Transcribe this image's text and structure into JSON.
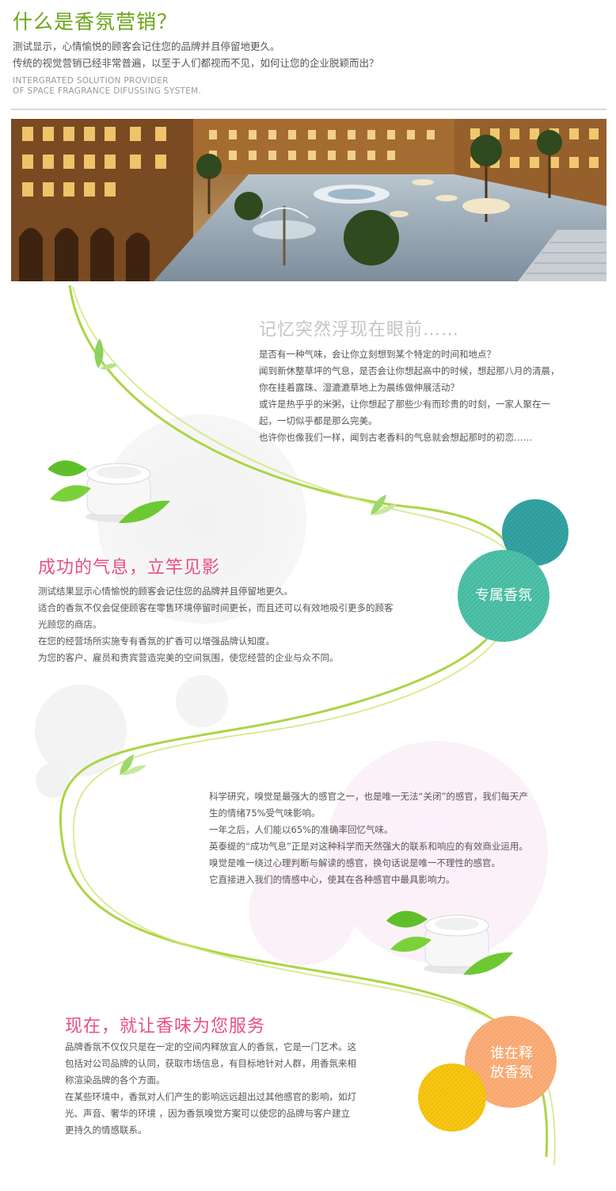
{
  "header": {
    "title": "什么是香氛营销？",
    "intro_lines": [
      "测试显示，心情愉悦的顾客会记住您的品牌并且停留地更久。",
      "传统的视觉营销已经非常普遍，以至于人们都视而不见，如何让您的企业脱颖而出？"
    ],
    "english_lines": [
      "INTERGRATED SOLUTION PROVIDER",
      "OF SPACE FRAGRANCE DIFUSSING SYSTEM."
    ]
  },
  "section_memory": {
    "heading": "记忆突然浮现在眼前……",
    "lines": [
      "是否有一种气味，会让你立刻想到某个特定的时间和地点？",
      "闻到新休整草坪的气息，是否会让你想起高中的时候，想起那八月的清晨，",
      "你在挂着露珠、湿漉漉草地上为晨练做伸展活动？",
      "或许是热乎乎的米粥，让你想起了那些少有而珍贵的时刻，一家人聚在一",
      "起，一切似乎都是那么完美。",
      "也许你也像我们一样，闻到古老香料的气息就会想起那时的初恋……"
    ]
  },
  "section_success": {
    "heading": "成功的气息，立竿见影",
    "lines": [
      "测试结果显示心情愉悦的顾客会记住您的品牌并且停留地更久。",
      "适合的香氛不仅会促使顾客在零售环境停留时间更长，而且还可以有效地吸引更多的顾客",
      "光顾您的商店。",
      "在您的经营场所实施专有香氛的扩香可以增强品牌认知度。",
      "为您的客户、雇员和贵宾营造完美的空间氛围，使您经营的企业与众不同。"
    ],
    "circle_label": "专属香氛"
  },
  "section_science": {
    "lines": [
      "科学研究，嗅觉是最强大的感官之一，也是唯一无法“关闭”的感官，我们每天产",
      "生的情绪75%受气味影响。",
      "一年之后，人们能以65%的准确率回忆气味。",
      "英泰缇的“成功气息”正是对这种科学而天然强大的联系和响应的有效商业运用。",
      "嗅觉是唯一绕过心理判断与解读的感官，换句话说是唯一不理性的感官。",
      "它直接进入我们的情感中心，使其在各种感官中最具影响力。"
    ]
  },
  "section_now": {
    "heading": "现在，就让香味为您服务",
    "lines": [
      "品牌香氛不仅仅只是在一定的空间内释放宜人的香氛，它是一门艺术。这",
      "包括对公司品牌的认同，获取市场信息，有目标地针对人群，用香氛来相",
      "称渲染品牌的各个方面。",
      "在某些环境中，香氛对人们产生的影响远远超出过其他感官的影响，如灯",
      "光、声音、奢华的环境 ，因为香氛嗅觉方案可以使您的品牌与客户建立",
      "更持久的情感联系。"
    ],
    "circle_label_lines": [
      "谁在释",
      "放香氛"
    ]
  },
  "colors": {
    "title_green": "#6aa516",
    "pink_heading": "#e8507f",
    "teal_dark": "#2e9a9a",
    "teal_light": "#4fbfa5",
    "orange": "#f8a56f",
    "yellow": "#f4c000",
    "ribbon_green": "#a7d33b"
  },
  "icons": [
    "cream-jar-icon",
    "leaf-icon"
  ]
}
